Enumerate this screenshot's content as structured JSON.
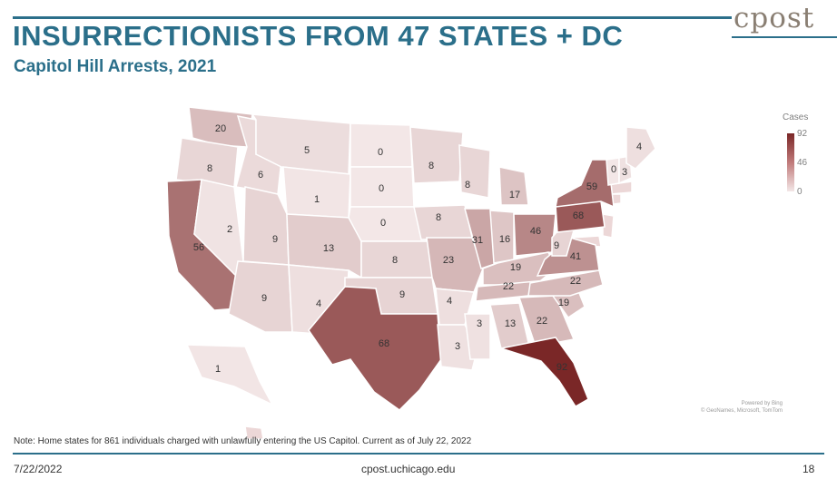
{
  "header": {
    "title": "INSURRECTIONISTS FROM 47 STATES + DC",
    "subtitle": "Capitol Hill Arrests, 2021",
    "logo_text": "cpost"
  },
  "legend": {
    "title": "Cases",
    "max": "92",
    "mid": "46",
    "min": "0"
  },
  "credits": {
    "line1": "Powered by Bing",
    "line2": "© GeoNames, Microsoft, TomTom"
  },
  "map_data": {
    "type": "choropleth",
    "metric": "Cases",
    "range": [
      0,
      92
    ],
    "color_low": "#f3e7e7",
    "color_high": "#7a2727",
    "states": [
      {
        "state": "WA",
        "value": 20
      },
      {
        "state": "OR",
        "value": 8
      },
      {
        "state": "ID",
        "value": 6
      },
      {
        "state": "MT",
        "value": 5
      },
      {
        "state": "WY",
        "value": 1
      },
      {
        "state": "CA",
        "value": 56
      },
      {
        "state": "NV",
        "value": 2
      },
      {
        "state": "UT",
        "value": 9
      },
      {
        "state": "AZ",
        "value": 9
      },
      {
        "state": "CO",
        "value": 13
      },
      {
        "state": "NM",
        "value": 4
      },
      {
        "state": "ND",
        "value": 0
      },
      {
        "state": "SD",
        "value": 0
      },
      {
        "state": "NE",
        "value": 0
      },
      {
        "state": "KS",
        "value": 8
      },
      {
        "state": "OK",
        "value": 9
      },
      {
        "state": "TX",
        "value": 68
      },
      {
        "state": "MN",
        "value": 8
      },
      {
        "state": "IA",
        "value": 8
      },
      {
        "state": "MO",
        "value": 23
      },
      {
        "state": "AR",
        "value": 4
      },
      {
        "state": "LA",
        "value": 3
      },
      {
        "state": "WI",
        "value": 8
      },
      {
        "state": "IL",
        "value": 31
      },
      {
        "state": "MI",
        "value": 17
      },
      {
        "state": "IN",
        "value": 16
      },
      {
        "state": "OH",
        "value": 46
      },
      {
        "state": "KY",
        "value": 19
      },
      {
        "state": "TN",
        "value": 22
      },
      {
        "state": "MS",
        "value": 3
      },
      {
        "state": "AL",
        "value": 13
      },
      {
        "state": "GA",
        "value": 22
      },
      {
        "state": "FL",
        "value": 92
      },
      {
        "state": "SC",
        "value": 19
      },
      {
        "state": "NC",
        "value": 22
      },
      {
        "state": "VA",
        "value": 41
      },
      {
        "state": "WV",
        "value": 9
      },
      {
        "state": "PA",
        "value": 68
      },
      {
        "state": "NY",
        "value": 59
      },
      {
        "state": "VT",
        "value": 0
      },
      {
        "state": "NH",
        "value": 3
      },
      {
        "state": "ME",
        "value": 4
      },
      {
        "state": "AK",
        "value": 1
      }
    ]
  },
  "note": "Note: Home states for 861 individuals charged with unlawfully entering the US Capitol. Current as of July 22, 2022",
  "footer": {
    "date": "7/22/2022",
    "url": "cpost.uchicago.edu",
    "page": "18"
  }
}
